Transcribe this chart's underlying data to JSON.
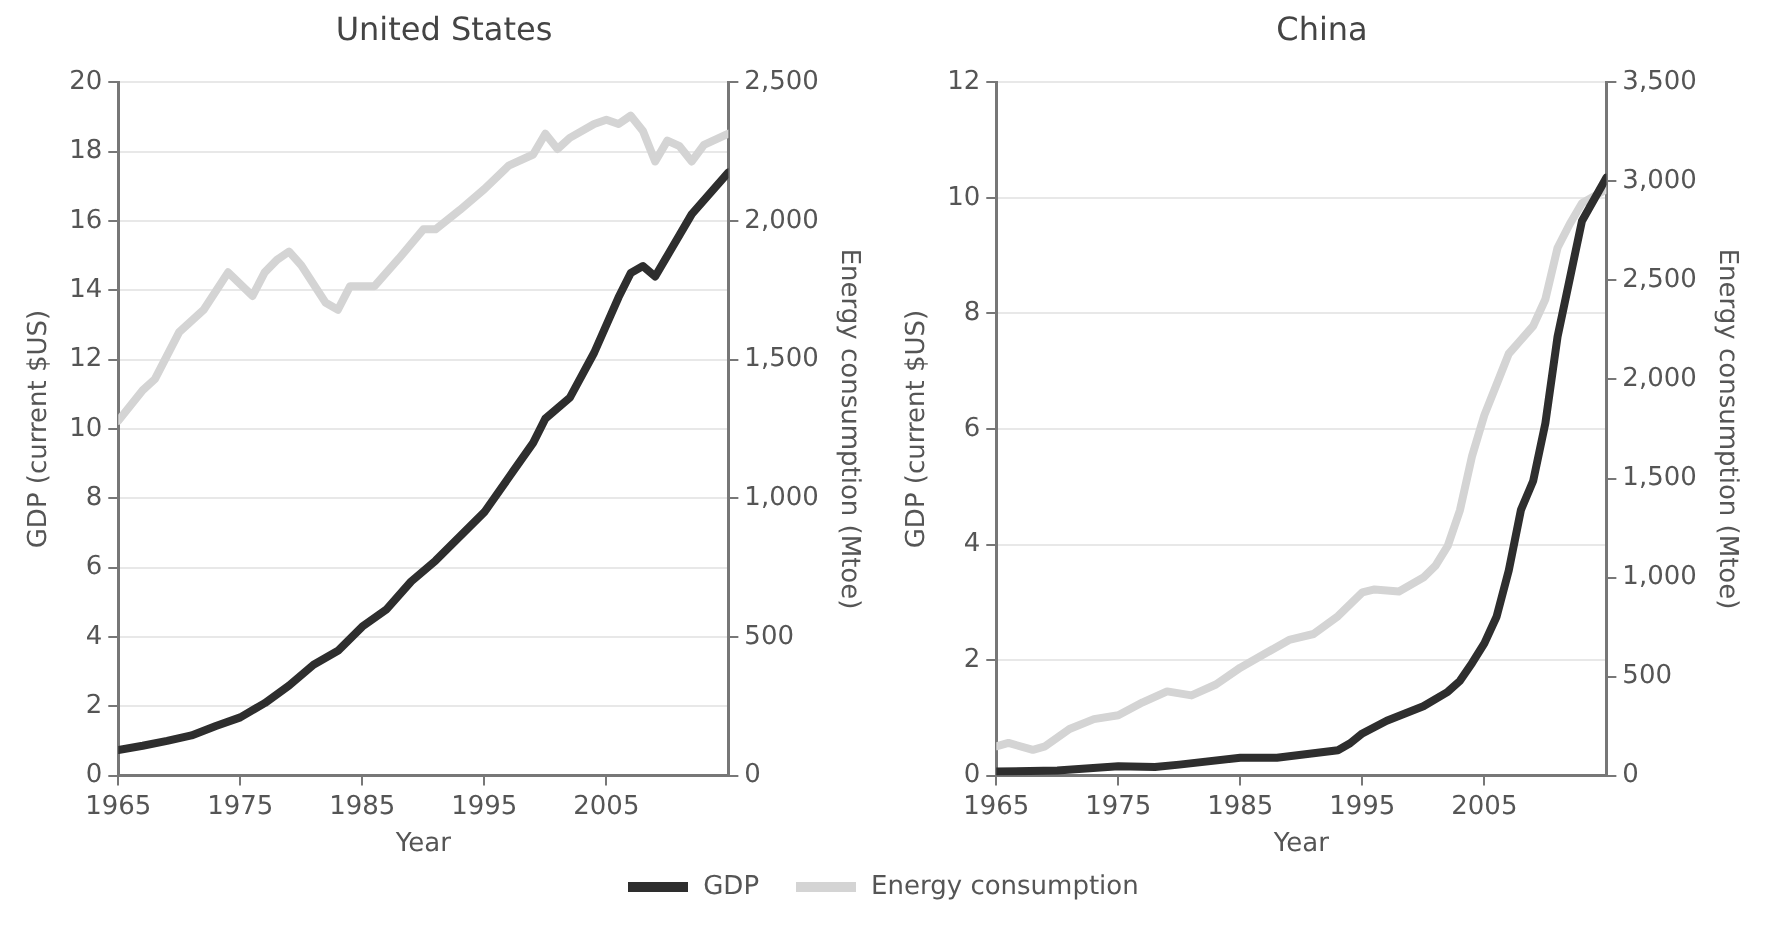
{
  "chart_data": [
    {
      "type": "line",
      "title": "United States",
      "xlabel": "Year",
      "ylabel": "GDP (current $US)",
      "y2label": "Energy consumption (Mtoe)",
      "xlim": [
        1965,
        2015
      ],
      "xticks": [
        1965,
        1975,
        1985,
        1995,
        2005
      ],
      "ylim": [
        0,
        20
      ],
      "yticks": [
        0,
        2,
        4,
        6,
        8,
        10,
        12,
        14,
        16,
        18,
        20
      ],
      "y2lim": [
        0,
        2500
      ],
      "y2ticks": [
        0,
        {
          "value": 500,
          "label": "500"
        },
        {
          "value": 1000,
          "label": "1,000"
        },
        {
          "value": 1500,
          "label": "1,500"
        },
        {
          "value": 2000,
          "label": "2,000"
        },
        {
          "value": 2500,
          "label": "2,500"
        }
      ],
      "grid": "y",
      "legend": "bottom",
      "marker": "none",
      "line_style": "solid",
      "series": [
        {
          "name": "GDP",
          "color": "#2e2e2e",
          "x": [
            1965,
            1967,
            1969,
            1971,
            1973,
            1975,
            1977,
            1979,
            1981,
            1983,
            1985,
            1987,
            1989,
            1991,
            1993,
            1995,
            1997,
            1999,
            2000,
            2002,
            2004,
            2006,
            2007,
            2008,
            2009,
            2010,
            2012,
            2015
          ],
          "values": [
            0.74,
            0.86,
            1.0,
            1.16,
            1.43,
            1.68,
            2.09,
            2.6,
            3.2,
            3.6,
            4.3,
            4.8,
            5.6,
            6.2,
            6.9,
            7.6,
            8.6,
            9.6,
            10.3,
            10.9,
            12.2,
            13.8,
            14.5,
            14.7,
            14.4,
            15.0,
            16.2,
            17.4
          ]
        },
        {
          "name": "Energy consumption",
          "color": "#d4d4d4",
          "axis": "y2",
          "x": [
            1965,
            1967,
            1968,
            1970,
            1972,
            1974,
            1976,
            1977,
            1978,
            1979,
            1980,
            1982,
            1983,
            1984,
            1986,
            1988,
            1990,
            1991,
            1993,
            1995,
            1997,
            1999,
            2000,
            2001,
            2002,
            2004,
            2005,
            2006,
            2007,
            2008,
            2009,
            2010,
            2011,
            2012,
            2013,
            2015
          ],
          "values": [
            1280,
            1390,
            1430,
            1600,
            1680,
            1815,
            1730,
            1815,
            1860,
            1890,
            1840,
            1705,
            1680,
            1765,
            1765,
            1865,
            1970,
            1970,
            2040,
            2115,
            2200,
            2240,
            2315,
            2260,
            2300,
            2350,
            2365,
            2350,
            2380,
            2325,
            2215,
            2290,
            2270,
            2215,
            2275,
            2315
          ]
        }
      ]
    },
    {
      "type": "line",
      "title": "China",
      "xlabel": "Year",
      "ylabel": "GDP (current $US)",
      "y2label": "Energy consumption (Mtoe)",
      "xlim": [
        1965,
        2015
      ],
      "xticks": [
        1965,
        1975,
        1985,
        1995,
        2005
      ],
      "ylim": [
        0,
        12
      ],
      "yticks": [
        0,
        2,
        4,
        6,
        8,
        10,
        12
      ],
      "y2lim": [
        0,
        3500
      ],
      "y2ticks": [
        0,
        {
          "value": 500,
          "label": "500"
        },
        {
          "value": 1000,
          "label": "1,000"
        },
        {
          "value": 1500,
          "label": "1,500"
        },
        {
          "value": 2000,
          "label": "2,000"
        },
        {
          "value": 2500,
          "label": "2,500"
        },
        {
          "value": 3000,
          "label": "3,000"
        },
        {
          "value": 3500,
          "label": "3,500"
        }
      ],
      "grid": "y",
      "legend": "bottom",
      "marker": "none",
      "line_style": "solid",
      "series": [
        {
          "name": "GDP",
          "color": "#2e2e2e",
          "x": [
            1965,
            1970,
            1975,
            1978,
            1980,
            1985,
            1988,
            1990,
            1993,
            1994,
            1995,
            1997,
            2000,
            2002,
            2003,
            2004,
            2005,
            2006,
            2007,
            2008,
            2009,
            2010,
            2011,
            2012,
            2013,
            2015
          ],
          "values": [
            0.07,
            0.09,
            0.16,
            0.15,
            0.19,
            0.31,
            0.31,
            0.36,
            0.44,
            0.56,
            0.73,
            0.95,
            1.2,
            1.45,
            1.64,
            1.95,
            2.29,
            2.75,
            3.55,
            4.6,
            5.1,
            6.1,
            7.6,
            8.6,
            9.6,
            10.35
          ]
        },
        {
          "name": "Energy consumption",
          "color": "#d4d4d4",
          "axis": "y2",
          "x": [
            1965,
            1966,
            1968,
            1969,
            1971,
            1973,
            1975,
            1977,
            1979,
            1981,
            1983,
            1985,
            1987,
            1989,
            1991,
            1993,
            1995,
            1996,
            1998,
            2000,
            2001,
            2002,
            2003,
            2004,
            2005,
            2006,
            2007,
            2008,
            2009,
            2010,
            2011,
            2012,
            2013,
            2015
          ],
          "values": [
            148,
            165,
            130,
            148,
            235,
            285,
            305,
            370,
            425,
            405,
            460,
            545,
            615,
            685,
            715,
            805,
            925,
            940,
            930,
            1000,
            1060,
            1160,
            1340,
            1615,
            1820,
            1975,
            2130,
            2200,
            2270,
            2405,
            2665,
            2785,
            2890,
            2960
          ]
        }
      ]
    }
  ]
}
